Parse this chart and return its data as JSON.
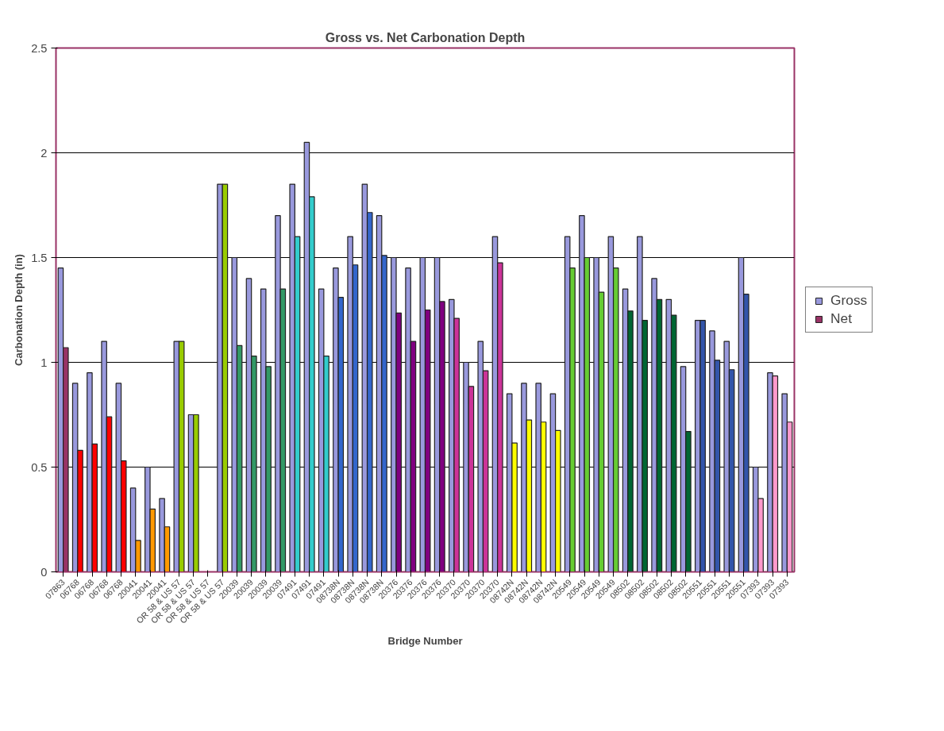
{
  "chart_data": {
    "type": "bar",
    "title": "Gross vs. Net Carbonation Depth",
    "xlabel": "Bridge Number",
    "ylabel": "Carbonation Depth (in)",
    "categories": [
      "07863",
      "06768",
      "06768",
      "06768",
      "06768",
      "20041",
      "20041",
      "20041",
      "OR 58 & US 57",
      "OR 58 & US 57",
      "OR 58 & US 57",
      "OR 58 & US 57",
      "20039",
      "20039",
      "20039",
      "20039",
      "07491",
      "07491",
      "07491",
      "08738N",
      "08738N",
      "08738N",
      "08738N",
      "20376",
      "20376",
      "20376",
      "20376",
      "20370",
      "20370",
      "20370",
      "20370",
      "08742N",
      "08742N",
      "08742N",
      "08742N",
      "20549",
      "20549",
      "20549",
      "20549",
      "08502",
      "08502",
      "08502",
      "08502",
      "08502",
      "20551",
      "20551",
      "20551",
      "20551",
      "07393",
      "07393",
      "07393"
    ],
    "series": [
      {
        "name": "Gross",
        "color": "#9999dd",
        "values": [
          1.45,
          0.9,
          0.95,
          1.1,
          0.9,
          0.4,
          0.5,
          0.35,
          1.1,
          0.75,
          null,
          1.85,
          1.5,
          1.4,
          1.35,
          1.7,
          1.85,
          2.05,
          1.35,
          1.45,
          1.6,
          1.85,
          1.7,
          1.5,
          1.45,
          1.5,
          1.5,
          1.3,
          1.0,
          1.1,
          1.6,
          0.85,
          0.9,
          0.9,
          0.85,
          1.6,
          1.7,
          1.5,
          1.6,
          1.35,
          1.6,
          1.4,
          1.3,
          0.98,
          1.2,
          1.15,
          1.1,
          1.5,
          0.5,
          0.95,
          0.85
        ]
      },
      {
        "name": "Net",
        "color": "#993366",
        "values": [
          1.07,
          0.58,
          0.61,
          0.74,
          0.53,
          0.15,
          0.3,
          0.215,
          1.1,
          0.75,
          null,
          1.85,
          1.08,
          1.03,
          0.98,
          1.35,
          1.6,
          1.79,
          1.03,
          1.31,
          1.465,
          1.715,
          1.51,
          1.235,
          1.1,
          1.25,
          1.29,
          1.21,
          0.885,
          0.96,
          1.475,
          0.615,
          0.725,
          0.715,
          0.675,
          1.45,
          1.5,
          1.335,
          1.45,
          1.245,
          1.2,
          1.3,
          1.225,
          0.67,
          1.2,
          1.01,
          0.965,
          1.325,
          0.35,
          0.935,
          0.715
        ],
        "colors": [
          "#993366",
          "#ff0000",
          "#ff0000",
          "#ff0000",
          "#ff0000",
          "#ff9900",
          "#ff9900",
          "#ff9900",
          "#99cc00",
          "#99cc00",
          "#99cc00",
          "#99cc00",
          "#339966",
          "#339966",
          "#339966",
          "#339966",
          "#33cccc",
          "#33cccc",
          "#33cccc",
          "#3366cc",
          "#3366cc",
          "#3366cc",
          "#3366cc",
          "#800080",
          "#800080",
          "#800080",
          "#800080",
          "#cc3399",
          "#cc3399",
          "#cc3399",
          "#cc3399",
          "#ffff00",
          "#ffff00",
          "#ffff00",
          "#ffff00",
          "#66cc33",
          "#66cc33",
          "#66cc33",
          "#66cc33",
          "#006633",
          "#006633",
          "#006633",
          "#006633",
          "#006633",
          "#3355aa",
          "#3355aa",
          "#3355aa",
          "#3355aa",
          "#ff99cc",
          "#ff99cc",
          "#ff99cc"
        ]
      }
    ],
    "ylim": [
      0,
      2.5
    ],
    "yticks": [
      0,
      0.5,
      1,
      1.5,
      2,
      2.5
    ],
    "grid": "y",
    "legend": "right"
  }
}
